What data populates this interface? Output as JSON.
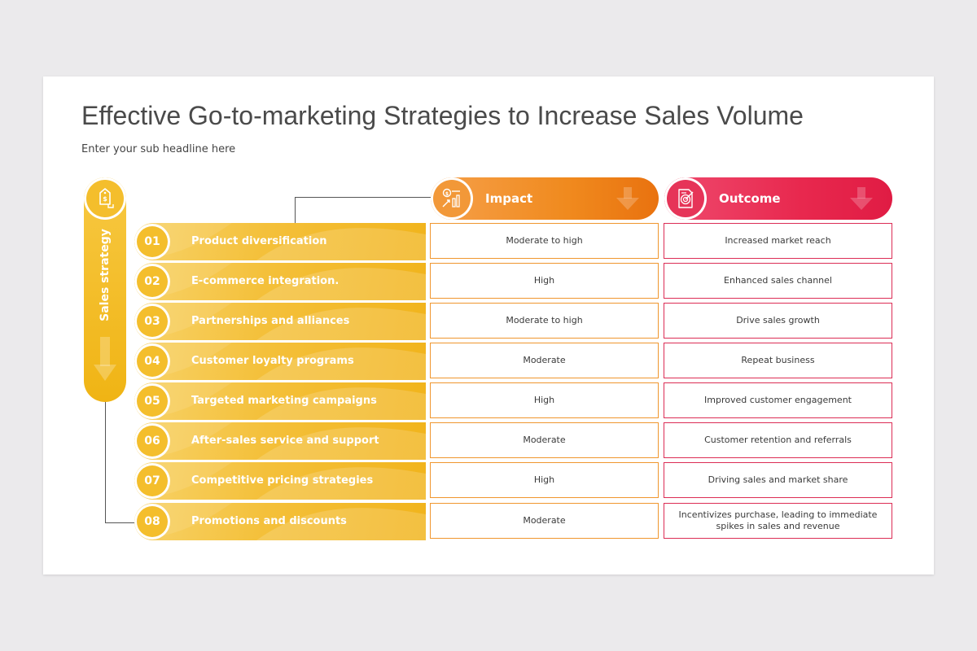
{
  "title": "Effective Go-to-marketing Strategies to Increase Sales Volume",
  "subtitle": "Enter your sub headline here",
  "sidebar": {
    "label": "Sales strategy",
    "icon": "price-tag-icon"
  },
  "headers": {
    "impact": {
      "label": "Impact",
      "icon": "growth-chart-icon",
      "color": "#f08a1e"
    },
    "outcome": {
      "label": "Outcome",
      "icon": "target-document-icon",
      "color": "#e8284e"
    }
  },
  "rows": [
    {
      "num": "01",
      "strategy": "Product diversification",
      "impact": "Moderate to high",
      "outcome": "Increased market reach"
    },
    {
      "num": "02",
      "strategy": "E-commerce integration.",
      "impact": "High",
      "outcome": "Enhanced sales channel"
    },
    {
      "num": "03",
      "strategy": "Partnerships and alliances",
      "impact": "Moderate to high",
      "outcome": "Drive sales growth"
    },
    {
      "num": "04",
      "strategy": "Customer loyalty programs",
      "impact": "Moderate",
      "outcome": "Repeat business"
    },
    {
      "num": "05",
      "strategy": "Targeted marketing campaigns",
      "impact": "High",
      "outcome": "Improved customer engagement"
    },
    {
      "num": "06",
      "strategy": "After-sales service and support",
      "impact": "Moderate",
      "outcome": "Customer retention and referrals"
    },
    {
      "num": "07",
      "strategy": "Competitive pricing strategies",
      "impact": "High",
      "outcome": "Driving sales and market share"
    },
    {
      "num": "08",
      "strategy": "Promotions and discounts",
      "impact": "Moderate",
      "outcome": "Incentivizes purchase, leading to immediate spikes in sales and revenue"
    }
  ]
}
